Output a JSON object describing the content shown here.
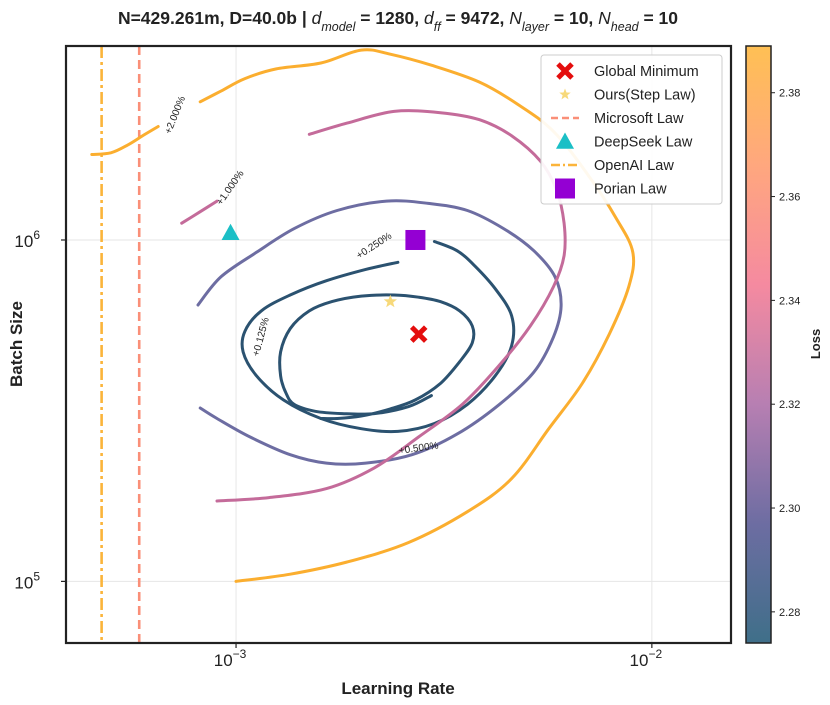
{
  "chart_data": {
    "type": "contour",
    "title": {
      "prefix": "N=429.261m, D=40.0b | ",
      "params": [
        {
          "sym": "d",
          "sub": "model",
          "val": "1280"
        },
        {
          "sym": "d",
          "sub": "ff",
          "val": "9472"
        },
        {
          "sym": "N",
          "sub": "layer",
          "val": "10"
        },
        {
          "sym": "N",
          "sub": "head",
          "val": "10"
        }
      ]
    },
    "xlabel": "Learning Rate",
    "ylabel": "Batch Size",
    "xscale": "log",
    "yscale": "log",
    "xlim": [
      0.00039,
      0.0155
    ],
    "ylim": [
      66000,
      3700000
    ],
    "x_ticks": [
      {
        "value": 0.001,
        "base": "10",
        "exp": "−3"
      },
      {
        "value": 0.01,
        "base": "10",
        "exp": "−2"
      }
    ],
    "y_ticks": [
      {
        "value": 100000,
        "base": "10",
        "exp": "5"
      },
      {
        "value": 1000000,
        "base": "10",
        "exp": "6"
      }
    ],
    "grid": true,
    "colorbar": {
      "label": "Loss",
      "min": 2.274,
      "max": 2.389,
      "ticks": [
        "2.28",
        "2.30",
        "2.32",
        "2.34",
        "2.36",
        "2.38"
      ],
      "tick_values": [
        2.28,
        2.3,
        2.32,
        2.34,
        2.36,
        2.38
      ],
      "colors": [
        "#3f6f89",
        "#6d6da2",
        "#b77fb2",
        "#f58aa0",
        "#ffa77e",
        "#ffc054"
      ]
    },
    "contours": [
      {
        "level": "+0.125%",
        "color": "#2b5270",
        "points": [
          [
            0.00295,
            350000
          ],
          [
            0.0026,
            325000
          ],
          [
            0.00215,
            310000
          ],
          [
            0.0018,
            310000
          ],
          [
            0.00155,
            315000
          ],
          [
            0.00138,
            330000
          ],
          [
            0.00132,
            355000
          ],
          [
            0.00128,
            400000
          ],
          [
            0.00128,
            470000
          ],
          [
            0.00135,
            550000
          ],
          [
            0.0015,
            620000
          ],
          [
            0.0017,
            660000
          ],
          [
            0.002,
            685000
          ],
          [
            0.0024,
            690000
          ],
          [
            0.00275,
            680000
          ],
          [
            0.0031,
            660000
          ],
          [
            0.00345,
            620000
          ],
          [
            0.0037,
            560000
          ],
          [
            0.0037,
            500000
          ],
          [
            0.00345,
            440000
          ],
          [
            0.0031,
            380000
          ],
          [
            0.0027,
            340000
          ],
          [
            0.00235,
            320000
          ],
          [
            0.002,
            305000
          ],
          [
            0.00175,
            300000
          ],
          [
            0.0016,
            300000
          ]
        ],
        "label_at": [
          0.00115,
          520000
        ],
        "label_angle": -75
      },
      {
        "level": "+0.250%",
        "color": "#2b5270",
        "points": [
          [
            0.00245,
            860000
          ],
          [
            0.00205,
            820000
          ],
          [
            0.00165,
            760000
          ],
          [
            0.00135,
            690000
          ],
          [
            0.00115,
            620000
          ],
          [
            0.00105,
            540000
          ],
          [
            0.00104,
            470000
          ],
          [
            0.00112,
            400000
          ],
          [
            0.0013,
            340000
          ],
          [
            0.0016,
            300000
          ],
          [
            0.002,
            280000
          ],
          [
            0.00245,
            275000
          ],
          [
            0.003,
            290000
          ],
          [
            0.0036,
            330000
          ],
          [
            0.0042,
            400000
          ],
          [
            0.0046,
            490000
          ],
          [
            0.0046,
            600000
          ],
          [
            0.0042,
            720000
          ],
          [
            0.00375,
            840000
          ],
          [
            0.0034,
            930000
          ],
          [
            0.003,
            990000
          ]
        ],
        "label_at": [
          0.00215,
          960000
        ],
        "label_angle": -33
      },
      {
        "level": "+0.500%",
        "color": "#6d6da2",
        "points": [
          [
            0.00081,
            645000
          ],
          [
            0.00092,
            780000
          ],
          [
            0.00112,
            920000
          ],
          [
            0.00138,
            1080000
          ],
          [
            0.00175,
            1220000
          ],
          [
            0.0023,
            1300000
          ],
          [
            0.0029,
            1280000
          ],
          [
            0.0036,
            1220000
          ],
          [
            0.0044,
            1080000
          ],
          [
            0.0052,
            930000
          ],
          [
            0.00585,
            780000
          ],
          [
            0.00605,
            640000
          ],
          [
            0.0058,
            520000
          ],
          [
            0.0052,
            410000
          ],
          [
            0.0043,
            330000
          ],
          [
            0.0034,
            270000
          ],
          [
            0.00265,
            235000
          ],
          [
            0.00205,
            222000
          ],
          [
            0.00165,
            222000
          ],
          [
            0.00135,
            235000
          ],
          [
            0.00108,
            265000
          ],
          [
            0.0009,
            300000
          ],
          [
            0.00082,
            322000
          ]
        ],
        "label_at": [
          0.00275,
          245000
        ],
        "label_angle": -8
      },
      {
        "level": "+1.000%",
        "color": "#c46b9a",
        "points": [
          [
            0.0015,
            2040000
          ],
          [
            0.00185,
            2200000
          ],
          [
            0.0024,
            2380000
          ],
          [
            0.0031,
            2360000
          ],
          [
            0.00385,
            2250000
          ],
          [
            0.0046,
            2020000
          ],
          [
            0.0054,
            1700000
          ],
          [
            0.0059,
            1400000
          ],
          [
            0.00615,
            1120000
          ],
          [
            0.00615,
            900000
          ],
          [
            0.0058,
            730000
          ],
          [
            0.0051,
            560000
          ],
          [
            0.0043,
            430000
          ],
          [
            0.0035,
            330000
          ],
          [
            0.00275,
            265000
          ],
          [
            0.00215,
            215000
          ],
          [
            0.00165,
            187000
          ],
          [
            0.0012,
            176000
          ],
          [
            0.0009,
            172000
          ]
        ],
        "extra": [
          [
            0.00074,
            1120000
          ],
          [
            0.00082,
            1210000
          ],
          [
            0.0009,
            1300000
          ]
        ],
        "label_at": [
          0.00097,
          1420000
        ],
        "label_angle": -55
      },
      {
        "level": "+2.000%",
        "color": "#fbae2f",
        "points": [
          [
            0.00082,
            2540000
          ],
          [
            0.00092,
            2730000
          ],
          [
            0.00105,
            2970000
          ],
          [
            0.00125,
            3170000
          ],
          [
            0.0016,
            3300000
          ],
          [
            0.002,
            3600000
          ],
          [
            0.00235,
            3500000
          ],
          [
            0.00295,
            3250000
          ],
          [
            0.00385,
            2900000
          ],
          [
            0.00475,
            2500000
          ],
          [
            0.0058,
            2080000
          ],
          [
            0.007,
            1560000
          ],
          [
            0.0082,
            1160000
          ],
          [
            0.009,
            920000
          ],
          [
            0.0088,
            730000
          ],
          [
            0.0079,
            530000
          ],
          [
            0.0068,
            380000
          ],
          [
            0.00565,
            280000
          ],
          [
            0.0046,
            200000
          ],
          [
            0.0036,
            160000
          ],
          [
            0.0026,
            130000
          ],
          [
            0.00185,
            114000
          ],
          [
            0.00135,
            105000
          ],
          [
            0.001,
            100000
          ]
        ],
        "extra": [
          [
            0.00045,
            1780000
          ],
          [
            0.0005,
            1800000
          ],
          [
            0.00055,
            1900000
          ],
          [
            0.0006,
            2030000
          ],
          [
            0.00065,
            2150000
          ]
        ],
        "label_at": [
          0.000715,
          2320000
        ],
        "label_angle": -68
      }
    ],
    "vertical_lines": [
      {
        "name": "Microsoft Law",
        "x": 0.000585,
        "color": "#fa8f78",
        "style": "dashed"
      },
      {
        "name": "OpenAI Law",
        "x": 0.000475,
        "color": "#fbb43a",
        "style": "dashdot"
      }
    ],
    "markers": [
      {
        "name": "Global Minimum",
        "x": 0.00275,
        "y": 530000,
        "marker": "x",
        "color": "#e40d0d"
      },
      {
        "name": "Ours(Step Law)",
        "x": 0.00235,
        "y": 660000,
        "marker": "star",
        "color": "#f7d97a"
      },
      {
        "name": "DeepSeek Law",
        "x": 0.00097,
        "y": 1050000,
        "marker": "triangle",
        "color": "#1bbfc6"
      },
      {
        "name": "Porian Law",
        "x": 0.0027,
        "y": 1000000,
        "marker": "square",
        "color": "#9400d3"
      }
    ],
    "legend": {
      "position": "top-right",
      "entries": [
        {
          "label": "Global Minimum",
          "marker": "x",
          "color": "#e40d0d"
        },
        {
          "label": "Ours(Step Law)",
          "marker": "star",
          "color": "#f7d97a"
        },
        {
          "label": "Microsoft Law",
          "marker": "dashed-line",
          "color": "#fa8f78"
        },
        {
          "label": "DeepSeek Law",
          "marker": "triangle",
          "color": "#1bbfc6"
        },
        {
          "label": "OpenAI Law",
          "marker": "dashdot-line",
          "color": "#fbb43a"
        },
        {
          "label": "Porian Law",
          "marker": "square",
          "color": "#9400d3"
        }
      ]
    }
  }
}
